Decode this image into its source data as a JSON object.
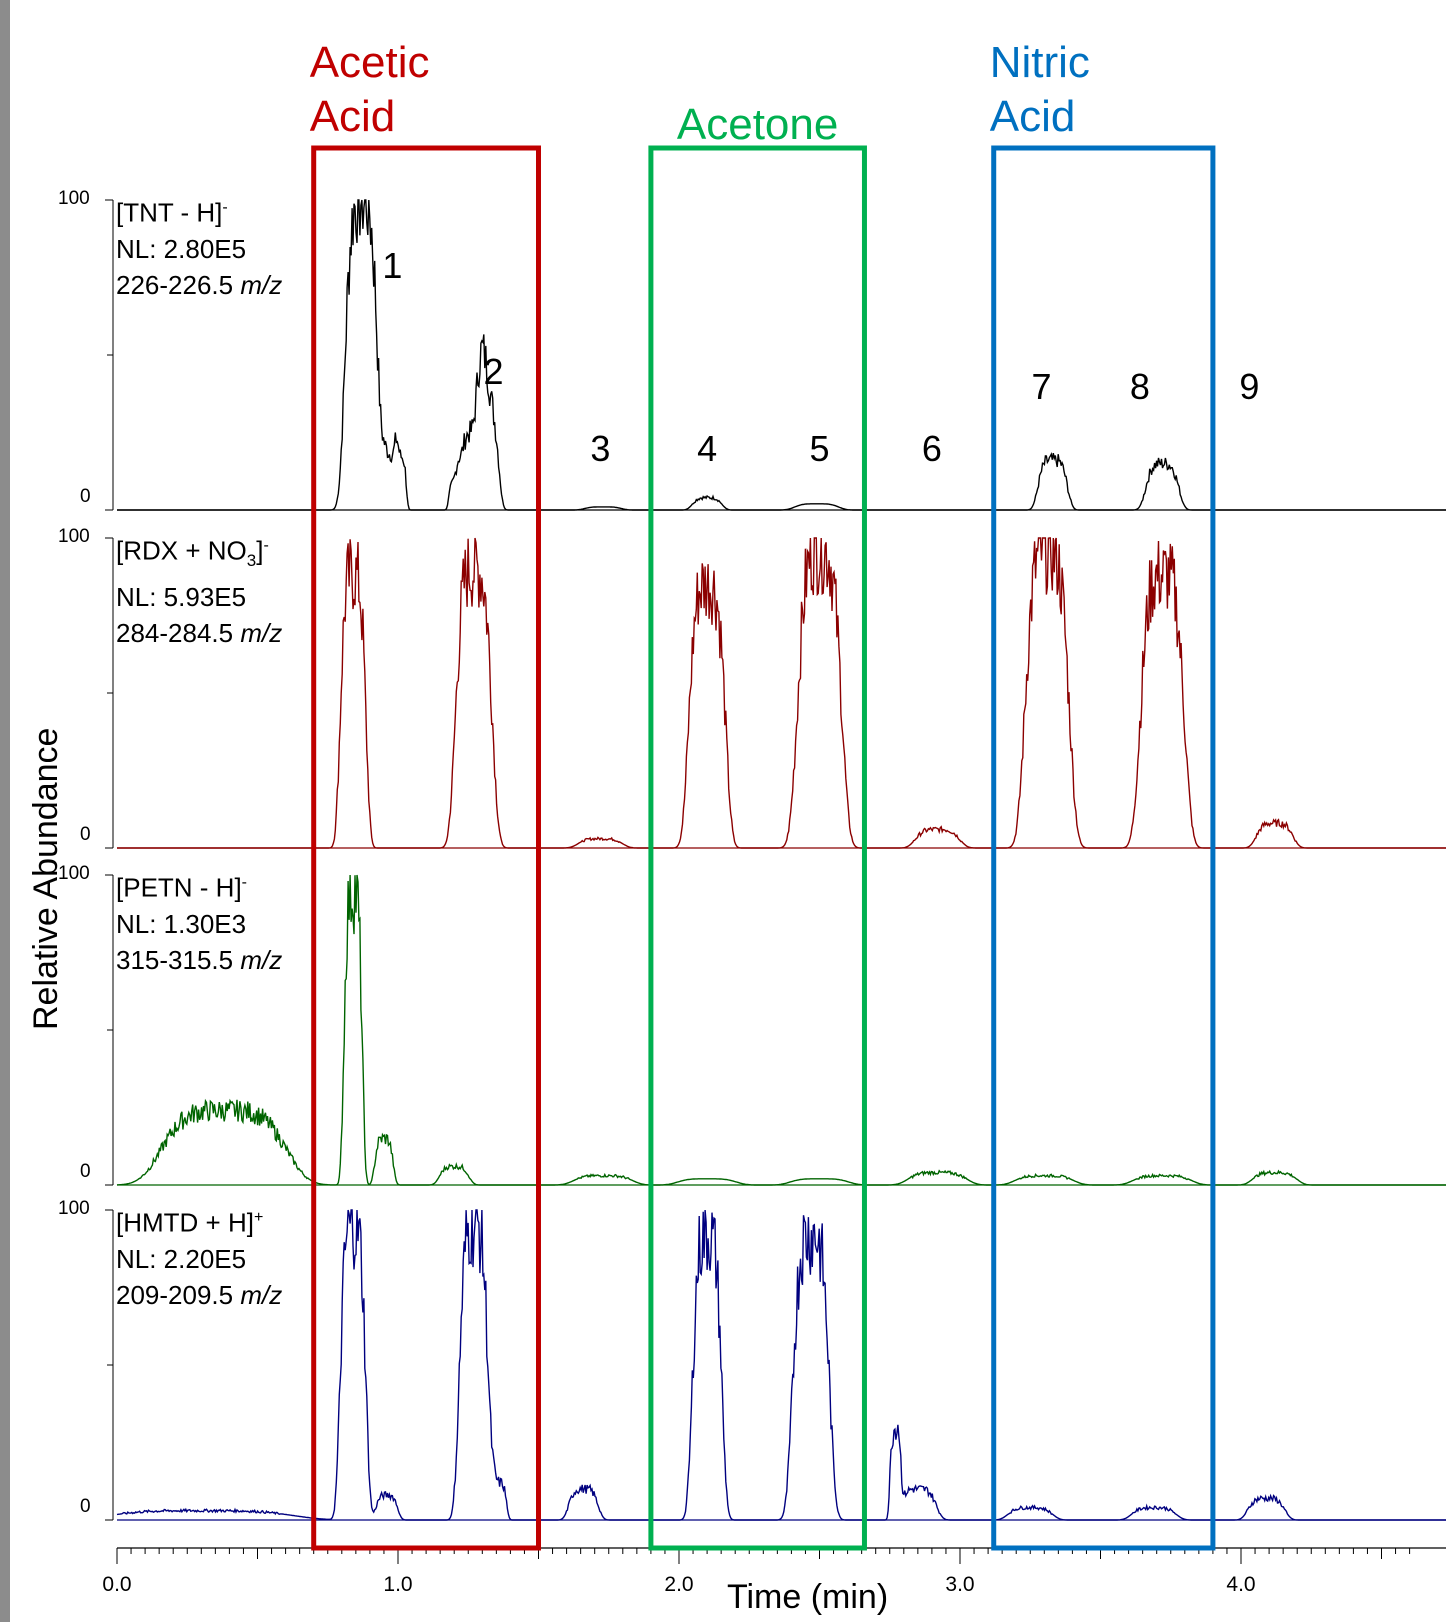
{
  "chart_data": {
    "type": "line",
    "xlabel": "Time (min)",
    "ylabel": "Relative Abundance",
    "xlim": [
      0.0,
      4.6
    ],
    "x_ticks": [
      "0.0",
      "1.0",
      "2.0",
      "3.0",
      "4.0"
    ],
    "y_tick_top": "100",
    "y_tick_bottom": "0",
    "groups": [
      {
        "name_line1": "Acetic",
        "name_line2": "Acid",
        "x_range": [
          0.7,
          1.5
        ],
        "color": "#c00000"
      },
      {
        "name_line1": "Acetone",
        "name_line2": "",
        "x_range": [
          1.9,
          2.66
        ],
        "color": "#00b050"
      },
      {
        "name_line1": "Nitric",
        "name_line2": "Acid",
        "x_range": [
          3.12,
          3.9
        ],
        "color": "#0070c0"
      }
    ],
    "peak_labels": [
      {
        "label": "1",
        "x": 0.98,
        "y": 79
      },
      {
        "label": "2",
        "x": 1.34,
        "y": 45
      },
      {
        "label": "3",
        "x": 1.72,
        "y": 20
      },
      {
        "label": "4",
        "x": 2.1,
        "y": 20
      },
      {
        "label": "5",
        "x": 2.5,
        "y": 20
      },
      {
        "label": "6",
        "x": 2.9,
        "y": 20
      },
      {
        "label": "7",
        "x": 3.29,
        "y": 40
      },
      {
        "label": "8",
        "x": 3.64,
        "y": 40
      },
      {
        "label": "9",
        "x": 4.03,
        "y": 40
      }
    ],
    "series": [
      {
        "ion_prefix": "[TNT - H]",
        "ion_sub": "",
        "ion_suffix": "]",
        "charge": "-",
        "label_main": "[TNT - H]",
        "nl": "NL: 2.80E5",
        "mz_range": "226-226.5",
        "mz_unit": "m/z",
        "color": "#000000",
        "peaks": [
          {
            "x": 0.87,
            "height": 100,
            "width": 0.045
          },
          {
            "x": 0.97,
            "height": 18,
            "width": 0.02
          },
          {
            "x": 1.01,
            "height": 17,
            "width": 0.015
          },
          {
            "x": 1.2,
            "height": 8,
            "width": 0.015
          },
          {
            "x": 1.27,
            "height": 25,
            "width": 0.04
          },
          {
            "x": 1.32,
            "height": 30,
            "width": 0.03
          },
          {
            "x": 1.73,
            "height": 1,
            "width": 0.05
          },
          {
            "x": 2.1,
            "height": 4,
            "width": 0.04
          },
          {
            "x": 2.49,
            "height": 2,
            "width": 0.06
          },
          {
            "x": 3.33,
            "height": 16,
            "width": 0.04
          },
          {
            "x": 3.72,
            "height": 15,
            "width": 0.045
          }
        ]
      },
      {
        "ion_prefix": "[RDX + NO",
        "ion_sub": "3",
        "ion_suffix": "]",
        "charge": "-",
        "label_main": "[RDX + NO3]",
        "nl": "NL: 5.93E5",
        "mz_range": "284-284.5",
        "mz_unit": "m/z",
        "color": "#8b0000",
        "peaks": [
          {
            "x": 0.84,
            "height": 88,
            "width": 0.035
          },
          {
            "x": 1.27,
            "height": 90,
            "width": 0.05
          },
          {
            "x": 1.72,
            "height": 3,
            "width": 0.06
          },
          {
            "x": 2.1,
            "height": 85,
            "width": 0.05
          },
          {
            "x": 2.5,
            "height": 96,
            "width": 0.06
          },
          {
            "x": 2.92,
            "height": 6,
            "width": 0.06
          },
          {
            "x": 3.31,
            "height": 96,
            "width": 0.06
          },
          {
            "x": 3.72,
            "height": 88,
            "width": 0.06
          },
          {
            "x": 4.12,
            "height": 8,
            "width": 0.05
          }
        ]
      },
      {
        "ion_prefix": "[PETN - H]",
        "ion_sub": "",
        "ion_suffix": "]",
        "charge": "-",
        "label_main": "[PETN - H]",
        "nl": "NL: 1.30E3",
        "mz_range": "315-315.5",
        "mz_unit": "m/z",
        "color": "#006400",
        "peaks": [
          {
            "x": 0.38,
            "height": 24,
            "width": 0.17
          },
          {
            "x": 0.84,
            "height": 95,
            "width": 0.025
          },
          {
            "x": 0.95,
            "height": 15,
            "width": 0.025
          },
          {
            "x": 1.2,
            "height": 6,
            "width": 0.04
          },
          {
            "x": 1.73,
            "height": 3,
            "width": 0.08
          },
          {
            "x": 2.1,
            "height": 2,
            "width": 0.08
          },
          {
            "x": 2.5,
            "height": 2,
            "width": 0.08
          },
          {
            "x": 2.92,
            "height": 4,
            "width": 0.08
          },
          {
            "x": 3.3,
            "height": 3,
            "width": 0.08
          },
          {
            "x": 3.72,
            "height": 3,
            "width": 0.08
          },
          {
            "x": 4.12,
            "height": 4,
            "width": 0.06
          }
        ]
      },
      {
        "ion_prefix": "[HMTD + H]",
        "ion_sub": "",
        "ion_suffix": "]",
        "charge": "+",
        "label_main": "[HMTD + H]",
        "nl": "NL: 2.20E5",
        "mz_range": "209-209.5",
        "mz_unit": "m/z",
        "color": "#00007f",
        "peaks": [
          {
            "x": 0.3,
            "height": 3,
            "width": 0.25
          },
          {
            "x": 0.84,
            "height": 95,
            "width": 0.035
          },
          {
            "x": 0.96,
            "height": 8,
            "width": 0.03
          },
          {
            "x": 1.27,
            "height": 95,
            "width": 0.04
          },
          {
            "x": 1.36,
            "height": 12,
            "width": 0.02
          },
          {
            "x": 1.66,
            "height": 10,
            "width": 0.04
          },
          {
            "x": 2.1,
            "height": 92,
            "width": 0.04
          },
          {
            "x": 2.47,
            "height": 92,
            "width": 0.05
          },
          {
            "x": 2.77,
            "height": 28,
            "width": 0.015
          },
          {
            "x": 2.85,
            "height": 10,
            "width": 0.05
          },
          {
            "x": 3.25,
            "height": 4,
            "width": 0.06
          },
          {
            "x": 3.69,
            "height": 4,
            "width": 0.06
          },
          {
            "x": 4.09,
            "height": 7,
            "width": 0.05
          }
        ]
      }
    ]
  }
}
